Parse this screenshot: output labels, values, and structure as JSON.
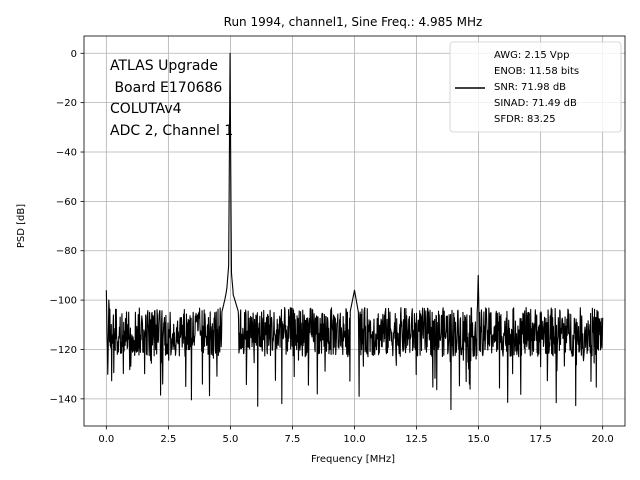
{
  "chart_data": {
    "type": "line",
    "title": "Run 1994, channel1, Sine Freq.: 4.985 MHz",
    "xlabel": "Frequency [MHz]",
    "ylabel": "PSD [dB]",
    "xlim": [
      -0.9,
      20.9
    ],
    "ylim": [
      -151,
      7
    ],
    "x_ticks": [
      0.0,
      2.5,
      5.0,
      7.5,
      10.0,
      12.5,
      15.0,
      17.5,
      20.0
    ],
    "x_tick_labels": [
      "0.0",
      "2.5",
      "5.0",
      "7.5",
      "10.0",
      "12.5",
      "15.0",
      "17.5",
      "20.0"
    ],
    "y_ticks": [
      0,
      -20,
      -40,
      -60,
      -80,
      -100,
      -120,
      -140
    ],
    "y_tick_labels": [
      "0",
      "−20",
      "−40",
      "−60",
      "−80",
      "−100",
      "−120",
      "−140"
    ],
    "grid": true,
    "legend_position": "top-right",
    "line_color": "#000000",
    "annotation_lines": [
      "ATLAS Upgrade",
      " Board E170686",
      "COLUTAv4",
      "ADC 2, Channel 1"
    ],
    "legend_lines": [
      "AWG: 2.15 Vpp",
      "ENOB: 11.58 bits",
      "SNR: 71.98 dB",
      "SINAD: 71.49 dB",
      "SFDR: 83.25"
    ],
    "series": [
      {
        "points": [
          [
            0.0,
            -96
          ],
          [
            0.05,
            -124
          ],
          [
            0.1,
            -100
          ],
          [
            0.2,
            -118
          ],
          [
            0.35,
            -112
          ],
          [
            0.5,
            -122
          ],
          [
            0.7,
            -109
          ],
          [
            0.9,
            -125
          ],
          [
            1.2,
            -113
          ],
          [
            1.5,
            -120
          ],
          [
            1.8,
            -108
          ],
          [
            2.0,
            -125
          ],
          [
            2.2,
            -115
          ],
          [
            2.5,
            -121
          ],
          [
            2.8,
            -110
          ],
          [
            3.0,
            -127
          ],
          [
            3.2,
            -135
          ],
          [
            3.4,
            -116
          ],
          [
            3.6,
            -109
          ],
          [
            3.9,
            -122
          ],
          [
            4.2,
            -114
          ],
          [
            4.4,
            -119
          ],
          [
            4.6,
            -107
          ],
          [
            4.75,
            -101
          ],
          [
            4.85,
            -96
          ],
          [
            4.93,
            -86
          ],
          [
            4.985,
            0
          ],
          [
            5.04,
            -89
          ],
          [
            5.12,
            -98
          ],
          [
            5.3,
            -104
          ],
          [
            5.5,
            -112
          ],
          [
            5.8,
            -121
          ],
          [
            6.1,
            -143
          ],
          [
            6.4,
            -118
          ],
          [
            6.8,
            -111
          ],
          [
            7.2,
            -123
          ],
          [
            7.6,
            -114
          ],
          [
            8.0,
            -119
          ],
          [
            8.5,
            -138
          ],
          [
            9.0,
            -115
          ],
          [
            9.5,
            -121
          ],
          [
            10.0,
            -96
          ],
          [
            10.3,
            -113
          ],
          [
            10.8,
            -120
          ],
          [
            11.5,
            -110
          ],
          [
            12.0,
            -122
          ],
          [
            12.5,
            -115
          ],
          [
            13.0,
            -119
          ],
          [
            13.5,
            -112
          ],
          [
            14.0,
            -125
          ],
          [
            14.5,
            -133
          ],
          [
            14.85,
            -118
          ],
          [
            14.95,
            -105
          ],
          [
            14.985,
            -90
          ],
          [
            15.02,
            -106
          ],
          [
            15.2,
            -121
          ],
          [
            15.6,
            -112
          ],
          [
            16.0,
            -118
          ],
          [
            16.5,
            -125
          ],
          [
            17.0,
            -113
          ],
          [
            17.5,
            -119
          ],
          [
            18.0,
            -111
          ],
          [
            18.5,
            -121
          ],
          [
            19.0,
            -114
          ],
          [
            19.5,
            -118
          ],
          [
            19.8,
            -110
          ],
          [
            20.0,
            -115
          ]
        ]
      }
    ]
  }
}
